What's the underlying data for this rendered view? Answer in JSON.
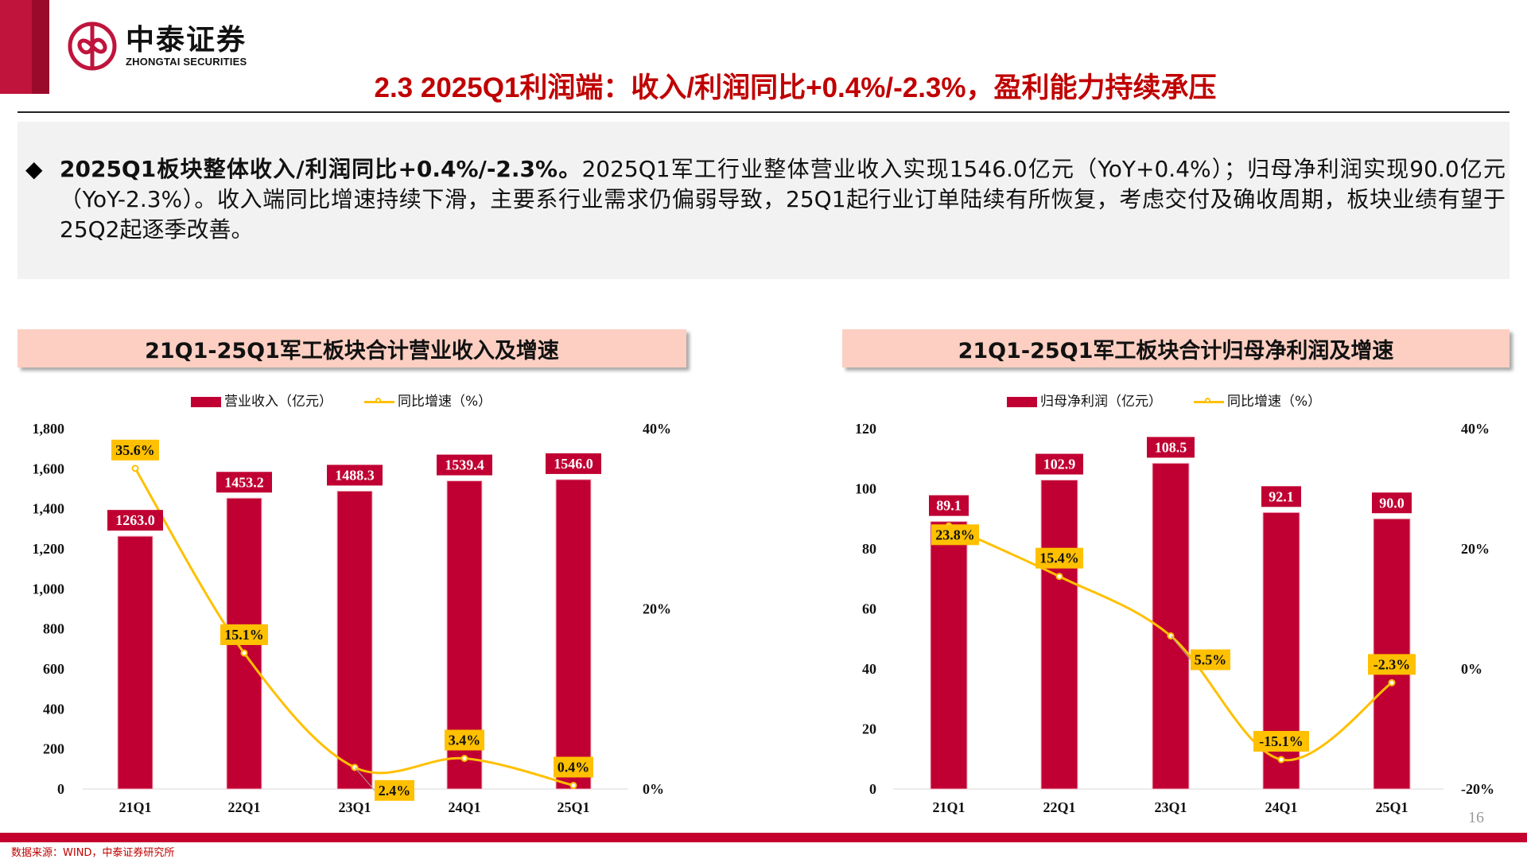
{
  "header": {
    "logo_cn": "中泰证券",
    "logo_en": "ZHONGTAI SECURITIES",
    "title": "2.3 2025Q1利润端：收入/利润同比+0.4%/-2.3%，盈利能力持续承压"
  },
  "summary": {
    "bullet": "◆",
    "bold": "2025Q1板块整体收入/利润同比+0.4%/-2.3%。",
    "text": "2025Q1军工行业整体营业收入实现1546.0亿元（YoY+0.4%）；归母净利润实现90.0亿元（YoY-2.3%）。收入端同比增速持续下滑，主要系行业需求仍偏弱导致，25Q1起行业订单陆续有所恢复，考虑交付及确收周期，板块业绩有望于25Q2起逐季改善。"
  },
  "colors": {
    "bar": "#c00032",
    "line": "#ffc000",
    "title": "#c00000"
  },
  "chart_data": [
    {
      "type": "bar+line",
      "title": "21Q1-25Q1军工板块合计营业收入及增速",
      "categories": [
        "21Q1",
        "22Q1",
        "23Q1",
        "24Q1",
        "25Q1"
      ],
      "series": [
        {
          "name": "营业收入（亿元）",
          "type": "bar",
          "axis": "left",
          "values": [
            1263.0,
            1453.2,
            1488.3,
            1539.4,
            1546.0
          ],
          "labels": [
            "1263.0",
            "1453.2",
            "1488.3",
            "1539.4",
            "1546.0"
          ]
        },
        {
          "name": "同比增速（%）",
          "type": "line",
          "axis": "right",
          "values": [
            35.6,
            15.1,
            2.4,
            3.4,
            0.4
          ],
          "labels": [
            "35.6%",
            "15.1%",
            "2.4%",
            "3.4%",
            "0.4%"
          ]
        }
      ],
      "left_axis": {
        "ylim": [
          0,
          1800
        ],
        "ticks": [
          "0",
          "200",
          "400",
          "600",
          "800",
          "1,000",
          "1,200",
          "1,400",
          "1,600",
          "1,800"
        ]
      },
      "right_axis": {
        "ylim": [
          0,
          40
        ],
        "ticks": [
          "0%",
          "20%",
          "40%"
        ]
      },
      "legend": "top"
    },
    {
      "type": "bar+line",
      "title": "21Q1-25Q1军工板块合计归母净利润及增速",
      "categories": [
        "21Q1",
        "22Q1",
        "23Q1",
        "24Q1",
        "25Q1"
      ],
      "series": [
        {
          "name": "归母净利润（亿元）",
          "type": "bar",
          "axis": "left",
          "values": [
            89.1,
            102.9,
            108.5,
            92.1,
            90.0
          ],
          "labels": [
            "89.1",
            "102.9",
            "108.5",
            "92.1",
            "90.0"
          ]
        },
        {
          "name": "同比增速（%）",
          "type": "line",
          "axis": "right",
          "values": [
            23.8,
            15.4,
            5.5,
            -15.1,
            -2.3
          ],
          "labels": [
            "23.8%",
            "15.4%",
            "5.5%",
            "-15.1%",
            "-2.3%"
          ]
        }
      ],
      "left_axis": {
        "ylim": [
          0,
          120
        ],
        "ticks": [
          "0",
          "20",
          "40",
          "60",
          "80",
          "100",
          "120"
        ]
      },
      "right_axis": {
        "ylim": [
          -20,
          40
        ],
        "ticks": [
          "-20%",
          "0%",
          "20%",
          "40%"
        ]
      },
      "legend": "top"
    }
  ],
  "footer": {
    "source": "数据来源：WIND，中泰证券研究所",
    "page": "16"
  }
}
